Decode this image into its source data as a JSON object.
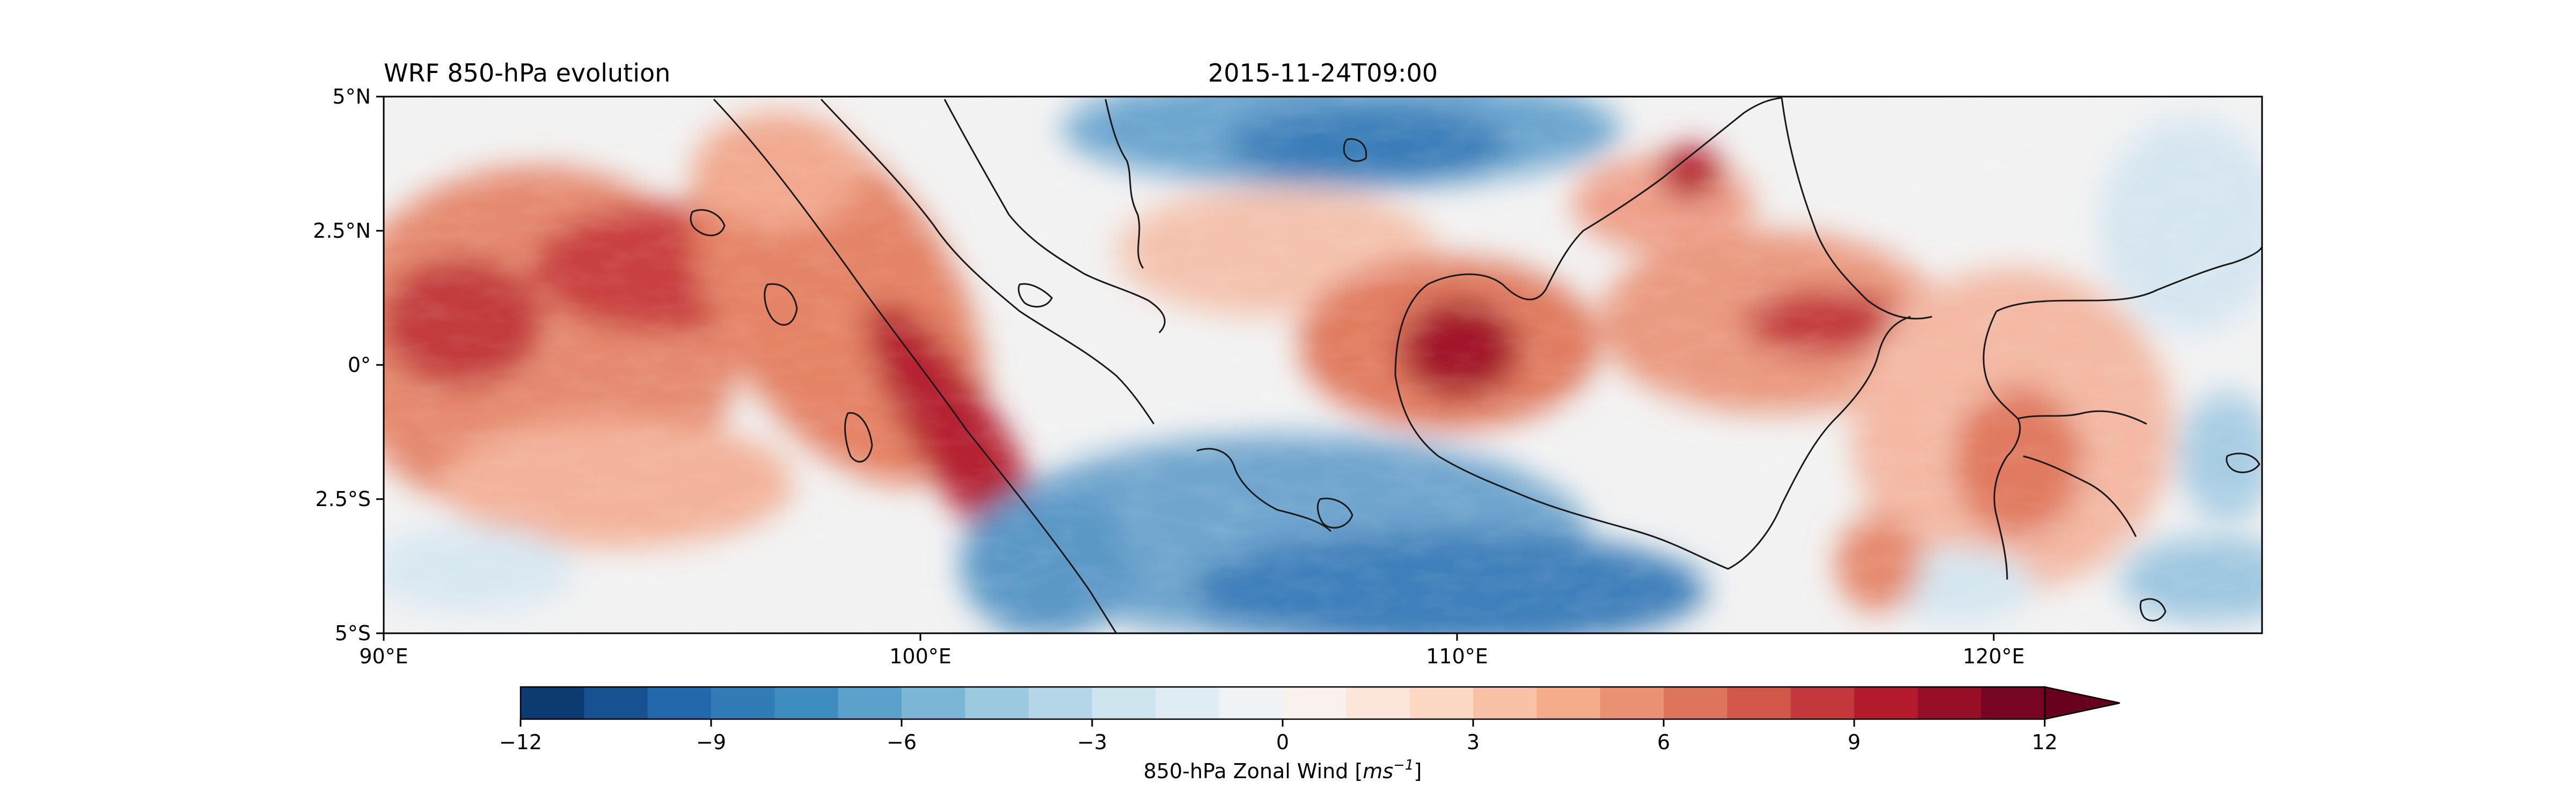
{
  "title_left": "WRF 850-hPa evolution",
  "title_center": "2015-11-24T09:00",
  "map": {
    "lon_range": [
      90,
      125
    ],
    "lat_range": [
      -5,
      5
    ],
    "x_ticks": [
      {
        "value": 90,
        "label": "90°E"
      },
      {
        "value": 100,
        "label": "100°E"
      },
      {
        "value": 110,
        "label": "110°E"
      },
      {
        "value": 120,
        "label": "120°E"
      }
    ],
    "y_ticks": [
      {
        "value": 5,
        "label": "5°N"
      },
      {
        "value": 2.5,
        "label": "2.5°N"
      },
      {
        "value": 0,
        "label": "0°"
      },
      {
        "value": -2.5,
        "label": "2.5°S"
      },
      {
        "value": -5,
        "label": "5°S"
      }
    ]
  },
  "colorbar": {
    "label_text": "850-hPa Zonal Wind [",
    "label_unit": "ms",
    "label_exp": "−1",
    "label_close": "]",
    "range": [
      -12,
      12
    ],
    "extend": "max",
    "levels": 24,
    "colormap": "RdBu_r",
    "ticks": [
      {
        "value": -12,
        "label": "−12"
      },
      {
        "value": -9,
        "label": "−9"
      },
      {
        "value": -6,
        "label": "−6"
      },
      {
        "value": -3,
        "label": "−3"
      },
      {
        "value": 0,
        "label": "0"
      },
      {
        "value": 3,
        "label": "3"
      },
      {
        "value": 6,
        "label": "6"
      },
      {
        "value": 9,
        "label": "9"
      },
      {
        "value": 12,
        "label": "12"
      }
    ]
  },
  "colors": {
    "coastline": "#1a1a1a",
    "extend_arrow": "#67001f"
  }
}
